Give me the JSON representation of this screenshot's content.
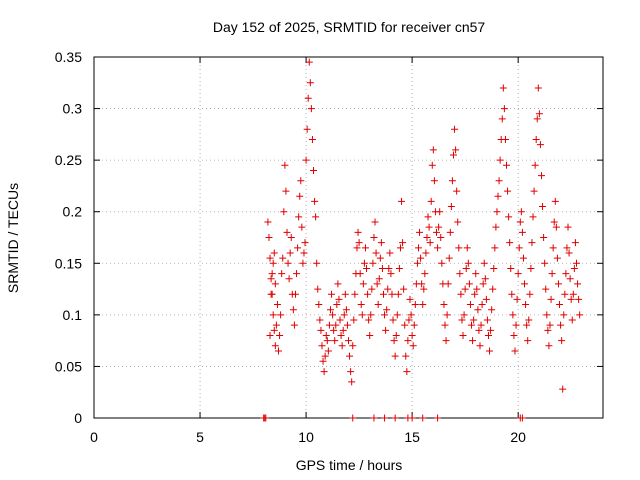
{
  "chart_data": {
    "type": "scatter",
    "title": "Day 152 of 2025, SRMTID for receiver cn57",
    "xlabel": "GPS time / hours",
    "ylabel": "SRMTID / TECUs",
    "xlim": [
      0,
      24
    ],
    "ylim": [
      0,
      0.35
    ],
    "xticks": [
      "0",
      "5",
      "10",
      "15",
      "20"
    ],
    "yticks": [
      "0",
      "0.05",
      "0.1",
      "0.15",
      "0.2",
      "0.25",
      "0.3",
      "0.35"
    ],
    "grid": true,
    "marker": "plus",
    "color": "#e00000",
    "series": [
      {
        "name": "SRMTID",
        "points": [
          [
            8.0,
            0.0
          ],
          [
            8.05,
            0.0
          ],
          [
            8.1,
            0.0
          ],
          [
            12.2,
            0.0
          ],
          [
            13.2,
            0.0
          ],
          [
            13.7,
            0.0
          ],
          [
            14.2,
            0.0
          ],
          [
            14.8,
            0.0
          ],
          [
            15.0,
            0.0
          ],
          [
            15.5,
            0.0
          ],
          [
            16.2,
            0.0
          ],
          [
            20.1,
            0.0
          ],
          [
            20.2,
            0.0
          ],
          [
            8.2,
            0.19
          ],
          [
            8.25,
            0.175
          ],
          [
            8.3,
            0.155
          ],
          [
            8.35,
            0.135
          ],
          [
            8.4,
            0.12
          ],
          [
            8.45,
            0.1
          ],
          [
            8.5,
            0.085
          ],
          [
            8.55,
            0.07
          ],
          [
            8.3,
            0.08
          ],
          [
            8.35,
            0.12
          ],
          [
            8.4,
            0.14
          ],
          [
            8.45,
            0.15
          ],
          [
            8.5,
            0.16
          ],
          [
            8.55,
            0.13
          ],
          [
            8.6,
            0.09
          ],
          [
            8.65,
            0.11
          ],
          [
            8.7,
            0.065
          ],
          [
            8.75,
            0.08
          ],
          [
            8.8,
            0.1
          ],
          [
            8.85,
            0.14
          ],
          [
            8.9,
            0.155
          ],
          [
            8.95,
            0.2
          ],
          [
            9.0,
            0.245
          ],
          [
            9.05,
            0.22
          ],
          [
            9.1,
            0.18
          ],
          [
            9.15,
            0.15
          ],
          [
            9.2,
            0.135
          ],
          [
            9.25,
            0.16
          ],
          [
            9.3,
            0.175
          ],
          [
            9.35,
            0.12
          ],
          [
            9.4,
            0.105
          ],
          [
            9.45,
            0.09
          ],
          [
            9.5,
            0.12
          ],
          [
            9.55,
            0.14
          ],
          [
            9.6,
            0.165
          ],
          [
            9.65,
            0.195
          ],
          [
            9.7,
            0.215
          ],
          [
            9.75,
            0.23
          ],
          [
            9.8,
            0.185
          ],
          [
            9.85,
            0.15
          ],
          [
            9.9,
            0.16
          ],
          [
            9.95,
            0.17
          ],
          [
            10.0,
            0.25
          ],
          [
            10.05,
            0.28
          ],
          [
            10.1,
            0.31
          ],
          [
            10.15,
            0.345
          ],
          [
            10.2,
            0.325
          ],
          [
            10.25,
            0.3
          ],
          [
            10.3,
            0.27
          ],
          [
            10.35,
            0.24
          ],
          [
            10.4,
            0.21
          ],
          [
            10.45,
            0.195
          ],
          [
            10.5,
            0.15
          ],
          [
            10.55,
            0.125
          ],
          [
            10.6,
            0.11
          ],
          [
            10.65,
            0.095
          ],
          [
            10.7,
            0.085
          ],
          [
            10.75,
            0.07
          ],
          [
            10.8,
            0.055
          ],
          [
            10.85,
            0.045
          ],
          [
            10.9,
            0.06
          ],
          [
            10.95,
            0.08
          ],
          [
            11.0,
            0.075
          ],
          [
            11.05,
            0.065
          ],
          [
            11.1,
            0.09
          ],
          [
            11.15,
            0.105
          ],
          [
            11.2,
            0.12
          ],
          [
            11.25,
            0.1
          ],
          [
            11.3,
            0.085
          ],
          [
            11.35,
            0.075
          ],
          [
            11.4,
            0.09
          ],
          [
            11.45,
            0.11
          ],
          [
            11.5,
            0.13
          ],
          [
            11.55,
            0.115
          ],
          [
            11.6,
            0.095
          ],
          [
            11.65,
            0.08
          ],
          [
            11.7,
            0.07
          ],
          [
            11.75,
            0.085
          ],
          [
            11.8,
            0.1
          ],
          [
            11.85,
            0.12
          ],
          [
            11.9,
            0.105
          ],
          [
            11.95,
            0.09
          ],
          [
            12.0,
            0.075
          ],
          [
            12.05,
            0.06
          ],
          [
            12.1,
            0.045
          ],
          [
            12.15,
            0.035
          ],
          [
            12.2,
            0.07
          ],
          [
            12.25,
            0.095
          ],
          [
            12.3,
            0.12
          ],
          [
            12.35,
            0.14
          ],
          [
            12.4,
            0.165
          ],
          [
            12.45,
            0.18
          ],
          [
            12.5,
            0.17
          ],
          [
            12.55,
            0.14
          ],
          [
            12.6,
            0.11
          ],
          [
            12.65,
            0.1
          ],
          [
            12.7,
            0.13
          ],
          [
            12.75,
            0.15
          ],
          [
            12.8,
            0.165
          ],
          [
            12.85,
            0.145
          ],
          [
            12.9,
            0.12
          ],
          [
            12.95,
            0.095
          ],
          [
            13.0,
            0.08
          ],
          [
            13.05,
            0.1
          ],
          [
            13.1,
            0.125
          ],
          [
            13.15,
            0.15
          ],
          [
            13.2,
            0.175
          ],
          [
            13.25,
            0.19
          ],
          [
            13.3,
            0.16
          ],
          [
            13.35,
            0.13
          ],
          [
            13.4,
            0.11
          ],
          [
            13.45,
            0.135
          ],
          [
            13.5,
            0.155
          ],
          [
            13.55,
            0.17
          ],
          [
            13.6,
            0.145
          ],
          [
            13.65,
            0.12
          ],
          [
            13.7,
            0.1
          ],
          [
            13.75,
            0.085
          ],
          [
            13.8,
            0.105
          ],
          [
            13.85,
            0.125
          ],
          [
            13.9,
            0.145
          ],
          [
            13.95,
            0.16
          ],
          [
            14.0,
            0.14
          ],
          [
            14.05,
            0.12
          ],
          [
            14.1,
            0.095
          ],
          [
            14.15,
            0.075
          ],
          [
            14.2,
            0.06
          ],
          [
            14.25,
            0.08
          ],
          [
            14.3,
            0.1
          ],
          [
            14.35,
            0.12
          ],
          [
            14.4,
            0.145
          ],
          [
            14.45,
            0.165
          ],
          [
            14.5,
            0.21
          ],
          [
            14.55,
            0.17
          ],
          [
            14.6,
            0.125
          ],
          [
            14.65,
            0.09
          ],
          [
            14.7,
            0.06
          ],
          [
            14.75,
            0.045
          ],
          [
            14.8,
            0.075
          ],
          [
            14.85,
            0.095
          ],
          [
            14.9,
            0.115
          ],
          [
            14.95,
            0.1
          ],
          [
            15.0,
            0.08
          ],
          [
            15.05,
            0.07
          ],
          [
            15.1,
            0.09
          ],
          [
            15.15,
            0.11
          ],
          [
            15.2,
            0.13
          ],
          [
            15.25,
            0.15
          ],
          [
            15.3,
            0.165
          ],
          [
            15.35,
            0.18
          ],
          [
            15.4,
            0.155
          ],
          [
            15.45,
            0.13
          ],
          [
            15.5,
            0.11
          ],
          [
            15.55,
            0.125
          ],
          [
            15.6,
            0.14
          ],
          [
            15.65,
            0.16
          ],
          [
            15.7,
            0.175
          ],
          [
            15.75,
            0.195
          ],
          [
            15.8,
            0.185
          ],
          [
            15.85,
            0.17
          ],
          [
            15.9,
            0.21
          ],
          [
            15.95,
            0.245
          ],
          [
            16.0,
            0.26
          ],
          [
            16.05,
            0.23
          ],
          [
            16.1,
            0.2
          ],
          [
            16.15,
            0.18
          ],
          [
            16.2,
            0.165
          ],
          [
            16.25,
            0.185
          ],
          [
            16.3,
            0.2
          ],
          [
            16.35,
            0.175
          ],
          [
            16.4,
            0.15
          ],
          [
            16.45,
            0.13
          ],
          [
            16.5,
            0.11
          ],
          [
            16.55,
            0.09
          ],
          [
            16.6,
            0.075
          ],
          [
            16.65,
            0.1
          ],
          [
            16.7,
            0.13
          ],
          [
            16.75,
            0.155
          ],
          [
            16.8,
            0.18
          ],
          [
            16.85,
            0.205
          ],
          [
            16.9,
            0.23
          ],
          [
            16.95,
            0.255
          ],
          [
            17.0,
            0.28
          ],
          [
            17.05,
            0.26
          ],
          [
            17.1,
            0.22
          ],
          [
            17.15,
            0.19
          ],
          [
            17.2,
            0.165
          ],
          [
            17.25,
            0.14
          ],
          [
            17.3,
            0.12
          ],
          [
            17.35,
            0.095
          ],
          [
            17.4,
            0.08
          ],
          [
            17.45,
            0.1
          ],
          [
            17.5,
            0.125
          ],
          [
            17.55,
            0.145
          ],
          [
            17.6,
            0.165
          ],
          [
            17.65,
            0.15
          ],
          [
            17.7,
            0.13
          ],
          [
            17.75,
            0.11
          ],
          [
            17.8,
            0.09
          ],
          [
            17.85,
            0.075
          ],
          [
            17.9,
            0.095
          ],
          [
            17.95,
            0.12
          ],
          [
            18.0,
            0.14
          ],
          [
            18.05,
            0.125
          ],
          [
            18.1,
            0.105
          ],
          [
            18.15,
            0.085
          ],
          [
            18.2,
            0.07
          ],
          [
            18.25,
            0.09
          ],
          [
            18.3,
            0.11
          ],
          [
            18.35,
            0.13
          ],
          [
            18.4,
            0.15
          ],
          [
            18.45,
            0.135
          ],
          [
            18.5,
            0.115
          ],
          [
            18.55,
            0.095
          ],
          [
            18.6,
            0.08
          ],
          [
            18.65,
            0.065
          ],
          [
            18.7,
            0.085
          ],
          [
            18.75,
            0.105
          ],
          [
            18.8,
            0.125
          ],
          [
            18.85,
            0.145
          ],
          [
            18.9,
            0.165
          ],
          [
            18.95,
            0.185
          ],
          [
            19.0,
            0.2
          ],
          [
            19.05,
            0.215
          ],
          [
            19.1,
            0.23
          ],
          [
            19.15,
            0.25
          ],
          [
            19.2,
            0.27
          ],
          [
            19.25,
            0.29
          ],
          [
            19.3,
            0.32
          ],
          [
            19.35,
            0.3
          ],
          [
            19.4,
            0.27
          ],
          [
            19.45,
            0.245
          ],
          [
            19.5,
            0.22
          ],
          [
            19.55,
            0.195
          ],
          [
            19.6,
            0.17
          ],
          [
            19.65,
            0.145
          ],
          [
            19.7,
            0.12
          ],
          [
            19.75,
            0.1
          ],
          [
            19.8,
            0.08
          ],
          [
            19.85,
            0.065
          ],
          [
            19.9,
            0.09
          ],
          [
            19.95,
            0.115
          ],
          [
            20.0,
            0.14
          ],
          [
            20.05,
            0.165
          ],
          [
            20.1,
            0.19
          ],
          [
            20.15,
            0.2
          ],
          [
            20.2,
            0.18
          ],
          [
            20.25,
            0.155
          ],
          [
            20.3,
            0.13
          ],
          [
            20.35,
            0.11
          ],
          [
            20.4,
            0.09
          ],
          [
            20.45,
            0.075
          ],
          [
            20.5,
            0.095
          ],
          [
            20.55,
            0.12
          ],
          [
            20.6,
            0.145
          ],
          [
            20.65,
            0.17
          ],
          [
            20.7,
            0.195
          ],
          [
            20.75,
            0.22
          ],
          [
            20.8,
            0.245
          ],
          [
            20.85,
            0.27
          ],
          [
            20.9,
            0.29
          ],
          [
            20.95,
            0.32
          ],
          [
            21.0,
            0.295
          ],
          [
            21.05,
            0.265
          ],
          [
            21.1,
            0.235
          ],
          [
            21.15,
            0.205
          ],
          [
            21.2,
            0.175
          ],
          [
            21.25,
            0.15
          ],
          [
            21.3,
            0.125
          ],
          [
            21.35,
            0.1
          ],
          [
            21.4,
            0.085
          ],
          [
            21.45,
            0.07
          ],
          [
            21.5,
            0.09
          ],
          [
            21.55,
            0.115
          ],
          [
            21.6,
            0.14
          ],
          [
            21.65,
            0.165
          ],
          [
            21.7,
            0.19
          ],
          [
            21.75,
            0.21
          ],
          [
            21.8,
            0.185
          ],
          [
            21.85,
            0.155
          ],
          [
            21.9,
            0.13
          ],
          [
            21.95,
            0.11
          ],
          [
            22.0,
            0.09
          ],
          [
            22.05,
            0.075
          ],
          [
            22.1,
            0.028
          ],
          [
            22.15,
            0.1
          ],
          [
            22.2,
            0.12
          ],
          [
            22.25,
            0.14
          ],
          [
            22.3,
            0.165
          ],
          [
            22.35,
            0.185
          ],
          [
            22.4,
            0.16
          ],
          [
            22.45,
            0.135
          ],
          [
            22.5,
            0.115
          ],
          [
            22.55,
            0.095
          ],
          [
            22.6,
            0.12
          ],
          [
            22.65,
            0.145
          ],
          [
            22.7,
            0.17
          ],
          [
            22.75,
            0.15
          ],
          [
            22.8,
            0.13
          ],
          [
            22.85,
            0.115
          ],
          [
            22.9,
            0.1
          ]
        ]
      }
    ]
  }
}
